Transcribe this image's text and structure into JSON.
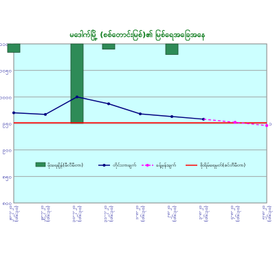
{
  "chart_data": {
    "type": "bar-line-combo",
    "title": "မဒေါက်မြို့ (စစ်တောင်းမြစ်)၏ မြစ်ရေအခြေအနေ",
    "categories": [
      "၂၈-၇-၂၀",
      "၂၉-၇-၂၀",
      "၃၀-၇-၂၀",
      "၃၁-၇-၂၀",
      "၁-၈-၂၀",
      "၂-၈-၂၀",
      "၃-၈-၂၀",
      "၄-၈-၂၀",
      "၅-၈-၂၀"
    ],
    "category_sublabel": "(၀၆:၃၀)",
    "left_axis_ticks": [
      "၁၁၀၀",
      "၁၀၅၀",
      "၁၀၀၀",
      "၉၅၀",
      "၉၀၀",
      "၈၅၀",
      "၈၀၀"
    ],
    "right_axis_ticks": [
      "",
      "",
      "",
      "၁",
      "",
      "",
      ""
    ],
    "water_level_ylim": [
      800,
      1100
    ],
    "rainfall_ylim": [
      0,
      150
    ],
    "danger_level": 951,
    "series": [
      {
        "name": "မိုးရေချိန်(မီလီမီတာ)",
        "kind": "bar",
        "color": "#2e8b57",
        "values": [
          8,
          0,
          75,
          5,
          0,
          10,
          0,
          0,
          0
        ]
      },
      {
        "name": "တိုင်းတာချက်",
        "kind": "line",
        "color": "#000080",
        "values": [
          970,
          967,
          1000,
          987,
          968,
          963,
          958,
          null,
          null
        ]
      },
      {
        "name": "ခန့်မှန်းချက်",
        "kind": "dashed-line",
        "color": "#ff00ff",
        "values": [
          null,
          null,
          null,
          null,
          null,
          null,
          958,
          952,
          946
        ]
      },
      {
        "name": "စိုးရိမ်ရေမှတ်(စင်တီမီတာ)",
        "kind": "reference-line",
        "color": "#ff0000",
        "values": [
          951,
          951,
          951,
          951,
          951,
          951,
          951,
          951,
          951
        ]
      }
    ],
    "legend_placement": "inside-lower-middle",
    "grid": true
  }
}
